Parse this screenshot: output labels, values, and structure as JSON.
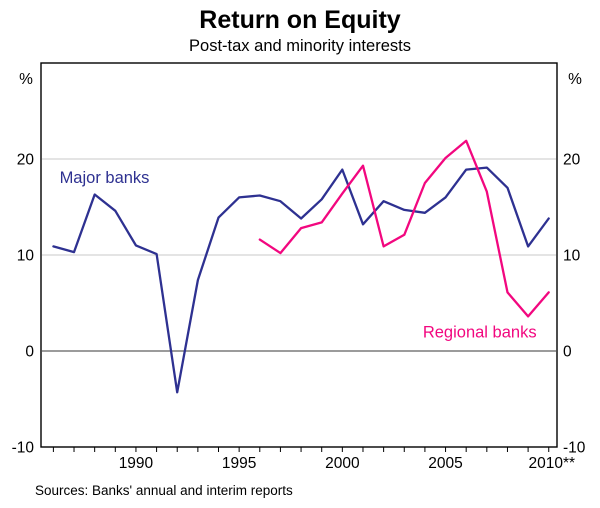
{
  "title": "Return on Equity",
  "subtitle": "Post-tax and minority interests",
  "source_note": "Sources: Banks' annual and interim reports",
  "chart_data": {
    "type": "line",
    "title": "Return on Equity",
    "subtitle": "Post-tax and minority interests",
    "y_unit": "%",
    "ylim": [
      -10,
      30
    ],
    "xlim": [
      1985.4,
      2010.4
    ],
    "y_ticks": [
      20,
      10,
      0,
      -10
    ],
    "y_gridlines": [
      20,
      10
    ],
    "zero_line": 0,
    "grid": true,
    "legend_position": "inline-labels",
    "x_year_ticks": {
      "start": 1986,
      "end": 2010
    },
    "x_tick_labels": [
      {
        "year": 1990,
        "label": "1990"
      },
      {
        "year": 1995,
        "label": "1995"
      },
      {
        "year": 2000,
        "label": "2000"
      },
      {
        "year": 2005,
        "label": "2005"
      },
      {
        "year": 2010,
        "label": "2010**"
      }
    ],
    "series": [
      {
        "name": "Major banks",
        "color": "#2e3191",
        "x": [
          1986,
          1987,
          1988,
          1989,
          1990,
          1991,
          1992,
          1993,
          1994,
          1995,
          1996,
          1997,
          1998,
          1999,
          2000,
          2001,
          2002,
          2003,
          2004,
          2005,
          2006,
          2007,
          2008,
          2009,
          2010
        ],
        "values": [
          10.9,
          10.3,
          16.3,
          14.6,
          11.0,
          10.1,
          -4.3,
          7.4,
          13.9,
          16.0,
          16.2,
          15.6,
          13.8,
          15.8,
          18.9,
          13.2,
          15.6,
          14.7,
          14.4,
          16.0,
          18.9,
          19.1,
          17.0,
          10.9,
          13.8
        ]
      },
      {
        "name": "Regional banks",
        "color": "#f2077f",
        "x": [
          1996,
          1997,
          1998,
          1999,
          2000,
          2001,
          2002,
          2003,
          2004,
          2005,
          2006,
          2007,
          2008,
          2009,
          2010
        ],
        "values": [
          11.6,
          10.2,
          12.8,
          13.4,
          16.4,
          19.3,
          10.9,
          12.1,
          17.5,
          20.1,
          21.9,
          16.6,
          6.1,
          3.6,
          6.1
        ]
      }
    ],
    "annotations": [
      {
        "text": "Major banks",
        "color": "#2e3191",
        "x": 1986.3,
        "y": 17.5,
        "anchor": "start"
      },
      {
        "text": "Regional banks",
        "color": "#f2077f",
        "x": 2003.9,
        "y": 1.4,
        "anchor": "start"
      }
    ]
  }
}
